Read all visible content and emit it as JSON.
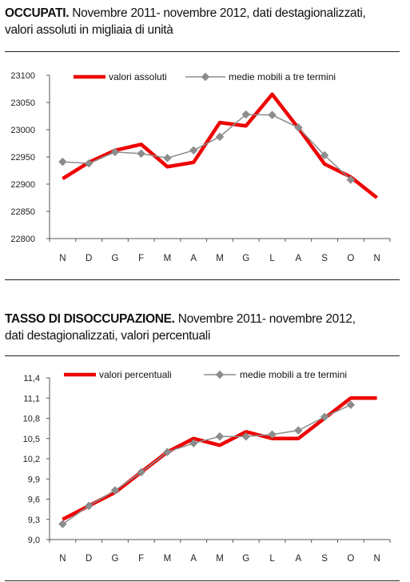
{
  "chart_data": [
    {
      "type": "line",
      "title_bold": "OCCUPATI.",
      "title_rest": " Novembre 2011- novembre 2012, dati destagionalizzati,",
      "title_line2": "valori assoluti in migliaia di unità",
      "categories": [
        "N",
        "D",
        "G",
        "F",
        "M",
        "A",
        "M",
        "G",
        "L",
        "A",
        "S",
        "O",
        "N"
      ],
      "yticks": [
        "23100",
        "23050",
        "23000",
        "22950",
        "22900",
        "22850",
        "22800"
      ],
      "ylim": [
        22800,
        23100
      ],
      "legend_position": "top",
      "series": [
        {
          "name": "valori assoluti",
          "color": "#ee0000",
          "values": [
            22910,
            22940,
            22962,
            22973,
            22932,
            22940,
            23013,
            23007,
            23065,
            23003,
            22937,
            22913,
            22875
          ]
        },
        {
          "name": "medie mobili a tre termini",
          "color": "#8c8c8c",
          "values": [
            22941,
            22938,
            22959,
            22956,
            22948,
            22962,
            22987,
            23028,
            23027,
            23004,
            22953,
            22908,
            null
          ]
        }
      ]
    },
    {
      "type": "line",
      "title_bold": "TASSO DI DISOCCUPAZIONE.",
      "title_rest": " Novembre 2011- novembre 2012,",
      "title_line2": "dati destagionalizzati, valori percentuali",
      "categories": [
        "N",
        "D",
        "G",
        "F",
        "M",
        "A",
        "M",
        "G",
        "L",
        "A",
        "S",
        "O",
        "N"
      ],
      "yticks": [
        "11,4",
        "11,1",
        "10,8",
        "10,5",
        "10,2",
        "9,9",
        "9,6",
        "9,3",
        "9,0"
      ],
      "ylim": [
        9.0,
        11.4
      ],
      "legend_position": "top",
      "series": [
        {
          "name": "valori percentuali",
          "color": "#ee0000",
          "values": [
            9.3,
            9.5,
            9.7,
            10.0,
            10.3,
            10.5,
            10.4,
            10.6,
            10.5,
            10.5,
            10.8,
            11.1,
            11.1
          ]
        },
        {
          "name": "medie mobili a tre termini",
          "color": "#8c8c8c",
          "values": [
            9.23,
            9.5,
            9.73,
            10.0,
            10.3,
            10.43,
            10.53,
            10.53,
            10.56,
            10.62,
            10.82,
            11.0,
            null
          ]
        }
      ]
    }
  ]
}
